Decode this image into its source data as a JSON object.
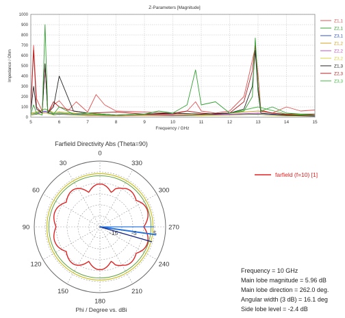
{
  "chart_data": [
    {
      "type": "line",
      "title": "Z-Parameters [Magnitude]",
      "xlabel": "Frequency / GHz",
      "ylabel": "Impedance / Ohm",
      "xlim": [
        5,
        15
      ],
      "ylim": [
        0,
        1000
      ],
      "xticks": [
        "5",
        "6",
        "7",
        "8",
        "9",
        "10",
        "11",
        "12",
        "13",
        "14",
        "15"
      ],
      "yticks": [
        "0",
        "100",
        "200",
        "300",
        "400",
        "500",
        "600",
        "700",
        "800",
        "900",
        "1000"
      ],
      "grid": true,
      "legend": "right",
      "series": [
        {
          "name": "Z1,1",
          "color": "#e05050",
          "x": [
            5.0,
            5.1,
            5.2,
            5.4,
            5.5,
            5.6,
            5.8,
            6.0,
            6.3,
            6.6,
            7.0,
            7.3,
            7.6,
            8.0,
            9.0,
            10.0,
            10.5,
            10.8,
            11.0,
            11.5,
            12.0,
            12.5,
            12.7,
            12.9,
            13.0,
            13.1,
            13.5,
            14.0,
            14.5,
            15.0
          ],
          "y": [
            100,
            700,
            180,
            60,
            520,
            40,
            120,
            160,
            60,
            150,
            50,
            220,
            120,
            60,
            50,
            40,
            60,
            150,
            60,
            40,
            60,
            200,
            430,
            680,
            420,
            70,
            40,
            100,
            60,
            70
          ]
        },
        {
          "name": "Z2,1",
          "color": "#30a030",
          "x": [
            5.0,
            5.1,
            5.2,
            5.4,
            5.5,
            5.6,
            5.8,
            6.0,
            6.5,
            7.0,
            8.0,
            9.0,
            9.5,
            10.0,
            10.5,
            10.8,
            11.0,
            11.5,
            12.0,
            12.5,
            12.8,
            12.9,
            13.0,
            13.1,
            13.5,
            14.0,
            15.0
          ],
          "y": [
            30,
            120,
            40,
            20,
            900,
            40,
            30,
            100,
            30,
            40,
            20,
            30,
            60,
            40,
            120,
            460,
            120,
            150,
            40,
            60,
            200,
            770,
            300,
            60,
            100,
            40,
            20
          ]
        },
        {
          "name": "Z3,1",
          "color": "#3050c0",
          "x": [
            5.0,
            5.2,
            5.5,
            5.8,
            6.0,
            7.0,
            8.0,
            9.0,
            10.0,
            11.0,
            12.0,
            13.0,
            14.0,
            15.0
          ],
          "y": [
            20,
            30,
            60,
            25,
            30,
            15,
            10,
            20,
            15,
            20,
            25,
            30,
            15,
            10
          ]
        },
        {
          "name": "Z1,2",
          "color": "#d0a020",
          "x": [
            5.0,
            5.2,
            5.5,
            5.8,
            6.0,
            7.0,
            8.0,
            9.0,
            10.0,
            11.0,
            12.0,
            13.0,
            14.0,
            15.0
          ],
          "y": [
            40,
            50,
            80,
            45,
            50,
            30,
            20,
            25,
            30,
            20,
            40,
            60,
            25,
            20
          ]
        },
        {
          "name": "Z2,2",
          "color": "#c050c0",
          "x": [
            5.0,
            5.2,
            5.5,
            5.8,
            6.0,
            7.0,
            8.0,
            9.0,
            10.0,
            11.0,
            12.0,
            13.0,
            14.0,
            15.0
          ],
          "y": [
            30,
            40,
            50,
            35,
            40,
            20,
            15,
            20,
            20,
            25,
            30,
            40,
            20,
            15
          ]
        },
        {
          "name": "Z3,2",
          "color": "#d8d040",
          "x": [
            5.0,
            5.2,
            5.5,
            5.8,
            6.0,
            7.0,
            8.0,
            9.0,
            10.0,
            11.0,
            12.0,
            13.0,
            14.0,
            15.0
          ],
          "y": [
            20,
            25,
            40,
            20,
            25,
            15,
            10,
            15,
            10,
            15,
            20,
            25,
            10,
            10
          ]
        },
        {
          "name": "Z1,3",
          "color": "#202020",
          "x": [
            5.0,
            5.1,
            5.2,
            5.4,
            5.5,
            5.6,
            5.8,
            6.0,
            6.5,
            7.0,
            8.0,
            9.0,
            10.0,
            11.0,
            12.0,
            12.5,
            12.8,
            12.9,
            13.0,
            13.1,
            13.5,
            14.0,
            15.0
          ],
          "y": [
            60,
            300,
            80,
            40,
            520,
            40,
            100,
            400,
            60,
            40,
            20,
            30,
            40,
            30,
            40,
            80,
            300,
            650,
            250,
            40,
            30,
            20,
            10
          ]
        },
        {
          "name": "Z2,3",
          "color": "#b02020",
          "x": [
            5.0,
            5.1,
            5.2,
            5.4,
            5.5,
            5.6,
            5.8,
            6.0,
            6.5,
            7.0,
            8.0,
            9.0,
            10.0,
            10.5,
            11.0,
            11.5,
            12.0,
            12.5,
            12.8,
            12.9,
            13.0,
            13.1,
            13.5,
            14.0,
            15.0
          ],
          "y": [
            80,
            650,
            100,
            40,
            500,
            40,
            150,
            100,
            60,
            40,
            50,
            30,
            30,
            60,
            40,
            30,
            40,
            150,
            450,
            700,
            300,
            60,
            40,
            30,
            30
          ]
        },
        {
          "name": "Z3,3",
          "color": "#40b840",
          "x": [
            5.0,
            5.2,
            5.5,
            5.8,
            6.0,
            7.0,
            8.0,
            9.0,
            10.0,
            11.0,
            12.0,
            13.0,
            14.0,
            15.0
          ],
          "y": [
            30,
            40,
            80,
            35,
            40,
            25,
            20,
            30,
            40,
            30,
            40,
            100,
            30,
            20
          ]
        }
      ]
    },
    {
      "type": "polar",
      "title": "Farfield Directivity Abs (Theta=90)",
      "xlabel": "Phi / Degree vs. dBi",
      "angle_labels": [
        "0",
        "330",
        "300",
        "270",
        "240",
        "210",
        "180",
        "150",
        "120",
        "90",
        "60",
        "30"
      ],
      "angles_deg": [
        0,
        330,
        300,
        270,
        240,
        210,
        180,
        150,
        120,
        90,
        60,
        30
      ],
      "radial_ticks": [
        "-15",
        "-5",
        "5"
      ],
      "rlim_dBi": [
        -20,
        10
      ],
      "series": [
        {
          "name": "farfield (f=10) [1]",
          "color": "#e02020"
        }
      ],
      "reference_circle_dB": 3,
      "main_lobe_direction_deg": 262.0,
      "main_lobe_magnitude_dBi": 5.96,
      "angular_width_deg": 16.1
    }
  ],
  "legend_entry": "farfield (f=10) [1]",
  "info": {
    "frequency": "Frequency = 10 GHz",
    "main_lobe_magnitude": "Main lobe magnitude =     5.96 dB",
    "main_lobe_direction": "Main lobe direction =  262.0 deg.",
    "angular_width": "Angular width (3 dB) =   16.1 deg",
    "side_lobe_level": "Side lobe level =   -2.4 dB"
  },
  "colors": {
    "grid": "#bbbbbb",
    "axis": "#777777",
    "polar_circle": "#c8c020",
    "polar_circle_inner": "#60a040",
    "main_lobe_arrow": "#2070e0",
    "main_lobe_arrow_dark": "#102080"
  }
}
